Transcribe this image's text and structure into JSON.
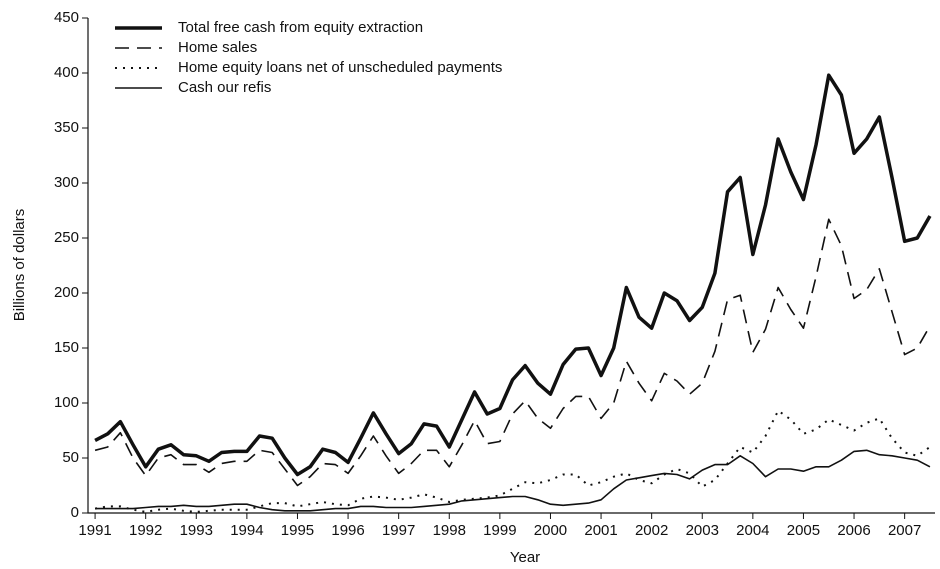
{
  "chart_data": {
    "type": "line",
    "x_label": "Year",
    "y_label": "Billions of dollars",
    "x": [
      1991,
      1991.25,
      1991.5,
      1991.75,
      1992,
      1992.25,
      1992.5,
      1992.75,
      1993,
      1993.25,
      1993.5,
      1993.75,
      1994,
      1994.25,
      1994.5,
      1994.75,
      1995,
      1995.25,
      1995.5,
      1995.75,
      1996,
      1996.25,
      1996.5,
      1996.75,
      1997,
      1997.25,
      1997.5,
      1997.75,
      1998,
      1998.25,
      1998.5,
      1998.75,
      1999,
      1999.25,
      1999.5,
      1999.75,
      2000,
      2000.25,
      2000.5,
      2000.75,
      2001,
      2001.25,
      2001.5,
      2001.75,
      2002,
      2002.25,
      2002.5,
      2002.75,
      2003,
      2003.25,
      2003.5,
      2003.75,
      2004,
      2004.25,
      2004.5,
      2004.75,
      2005,
      2005.25,
      2005.5,
      2005.75,
      2006,
      2006.25,
      2006.5,
      2006.75,
      2007,
      2007.25,
      2007.5
    ],
    "series": [
      {
        "name": "Total free cash from equity extraction",
        "color": "#111111",
        "style": "thick",
        "values": [
          66,
          72,
          83,
          62,
          42,
          58,
          62,
          53,
          52,
          47,
          55,
          56,
          56,
          70,
          68,
          50,
          35,
          42,
          58,
          55,
          46,
          68,
          91,
          72,
          54,
          63,
          81,
          79,
          60,
          85,
          110,
          90,
          95,
          121,
          134,
          118,
          108,
          135,
          149,
          150,
          125,
          150,
          205,
          178,
          168,
          200,
          193,
          175,
          187,
          218,
          292,
          305,
          235,
          280,
          340,
          310,
          285,
          335,
          398,
          380,
          327,
          340,
          360,
          305,
          247,
          250,
          270
        ]
      },
      {
        "name": "Home sales",
        "color": "#111111",
        "style": "dashed",
        "values": [
          57,
          60,
          73,
          50,
          34,
          50,
          53,
          44,
          44,
          37,
          45,
          47,
          47,
          57,
          55,
          40,
          25,
          33,
          45,
          44,
          36,
          52,
          70,
          52,
          36,
          45,
          57,
          57,
          42,
          62,
          84,
          63,
          65,
          90,
          102,
          86,
          77,
          95,
          106,
          106,
          86,
          100,
          138,
          118,
          102,
          127,
          120,
          108,
          118,
          147,
          194,
          198,
          146,
          167,
          205,
          185,
          168,
          215,
          267,
          243,
          195,
          203,
          222,
          183,
          144,
          150,
          170
        ]
      },
      {
        "name": "Home equity loans net of unscheduled payments",
        "color": "#111111",
        "style": "dotted",
        "values": [
          4,
          6,
          6,
          3,
          1,
          3,
          4,
          2,
          1,
          2,
          3,
          3,
          3,
          6,
          9,
          9,
          6,
          8,
          10,
          8,
          7,
          13,
          15,
          14,
          12,
          14,
          17,
          14,
          10,
          12,
          13,
          14,
          16,
          22,
          28,
          27,
          30,
          35,
          35,
          25,
          28,
          33,
          36,
          30,
          27,
          35,
          40,
          36,
          24,
          30,
          45,
          60,
          55,
          70,
          93,
          85,
          72,
          76,
          85,
          80,
          75,
          82,
          86,
          68,
          55,
          52,
          60
        ]
      },
      {
        "name": "Cash our refis",
        "color": "#111111",
        "style": "solid",
        "values": [
          4,
          4,
          4,
          4,
          5,
          6,
          6,
          7,
          6,
          6,
          7,
          8,
          8,
          5,
          3,
          2,
          2,
          2,
          3,
          4,
          4,
          6,
          6,
          5,
          5,
          5,
          6,
          7,
          8,
          11,
          12,
          13,
          14,
          15,
          15,
          12,
          8,
          7,
          8,
          9,
          12,
          22,
          30,
          32,
          34,
          36,
          35,
          31,
          39,
          44,
          44,
          52,
          45,
          33,
          40,
          40,
          38,
          42,
          42,
          48,
          56,
          57,
          53,
          52,
          50,
          48,
          42
        ]
      }
    ],
    "xlim": [
      1990.86,
      2007.6
    ],
    "xticks": [
      1991,
      1992,
      1993,
      1994,
      1995,
      1996,
      1997,
      1998,
      1999,
      2000,
      2001,
      2002,
      2003,
      2004,
      2005,
      2006,
      2007
    ],
    "ylim": [
      0,
      450
    ],
    "yticks": [
      0,
      50,
      100,
      150,
      200,
      250,
      300,
      350,
      400,
      450
    ],
    "legend": "top-left"
  }
}
